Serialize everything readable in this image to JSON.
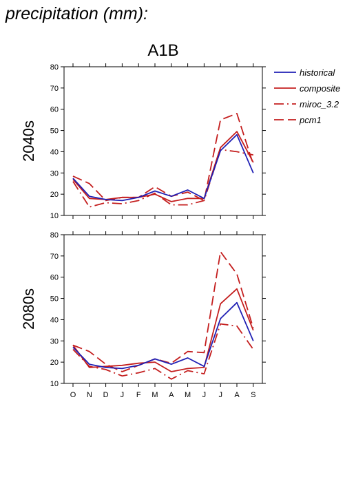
{
  "figure": {
    "title": "precipitation (mm):",
    "scenario": "A1B"
  },
  "colors": {
    "historical": "#1f1fb4",
    "model": "#c41e1e",
    "axis": "#000000"
  },
  "chart_data": [
    {
      "type": "line",
      "panel_label": "2040s",
      "categories": [
        "O",
        "N",
        "D",
        "J",
        "F",
        "M",
        "A",
        "M",
        "J",
        "J",
        "A",
        "S"
      ],
      "ylim": [
        10,
        80
      ],
      "yticks": [
        10,
        20,
        30,
        40,
        50,
        60,
        70,
        80
      ],
      "series": [
        {
          "name": "historical",
          "style": "solid",
          "color": "#1f1fb4",
          "values": [
            27.5,
            19,
            17.5,
            17,
            18.5,
            21.5,
            19,
            22,
            18,
            40.5,
            48,
            30
          ]
        },
        {
          "name": "composite",
          "style": "solid",
          "color": "#c41e1e",
          "values": [
            27,
            18,
            17.5,
            18.5,
            18.5,
            20,
            16.5,
            18,
            18,
            42,
            49.5,
            35
          ]
        },
        {
          "name": "miroc_3.2",
          "style": "dashdot",
          "color": "#c41e1e",
          "values": [
            26,
            14,
            16,
            15.5,
            17,
            20.5,
            15,
            15,
            17,
            41,
            40,
            38.5
          ]
        },
        {
          "name": "pcm1",
          "style": "dashed",
          "color": "#c41e1e",
          "values": [
            28.5,
            25,
            17,
            18.5,
            18.5,
            23.5,
            19,
            21,
            17,
            55,
            58,
            34
          ]
        }
      ]
    },
    {
      "type": "line",
      "panel_label": "2080s",
      "categories": [
        "O",
        "N",
        "D",
        "J",
        "F",
        "M",
        "A",
        "M",
        "J",
        "J",
        "A",
        "S"
      ],
      "ylim": [
        10,
        80
      ],
      "yticks": [
        10,
        20,
        30,
        40,
        50,
        60,
        70,
        80
      ],
      "series": [
        {
          "name": "historical",
          "style": "solid",
          "color": "#1f1fb4",
          "values": [
            27,
            19,
            17.5,
            17,
            18.5,
            21.5,
            19,
            22,
            18,
            40.5,
            48,
            30
          ]
        },
        {
          "name": "composite",
          "style": "solid",
          "color": "#c41e1e",
          "values": [
            28,
            17.5,
            18,
            18.5,
            19.5,
            20,
            15.5,
            17,
            17.5,
            47.5,
            54.5,
            35
          ]
        },
        {
          "name": "miroc_3.2",
          "style": "dashdot",
          "color": "#c41e1e",
          "values": [
            26,
            18,
            16.5,
            13.5,
            15,
            17,
            12,
            16,
            14.5,
            38,
            37,
            26
          ]
        },
        {
          "name": "pcm1",
          "style": "dashed",
          "color": "#c41e1e",
          "values": [
            28,
            25,
            19,
            15.5,
            18.5,
            21.5,
            19.5,
            25,
            24.5,
            72,
            61.5,
            36
          ]
        }
      ]
    }
  ]
}
